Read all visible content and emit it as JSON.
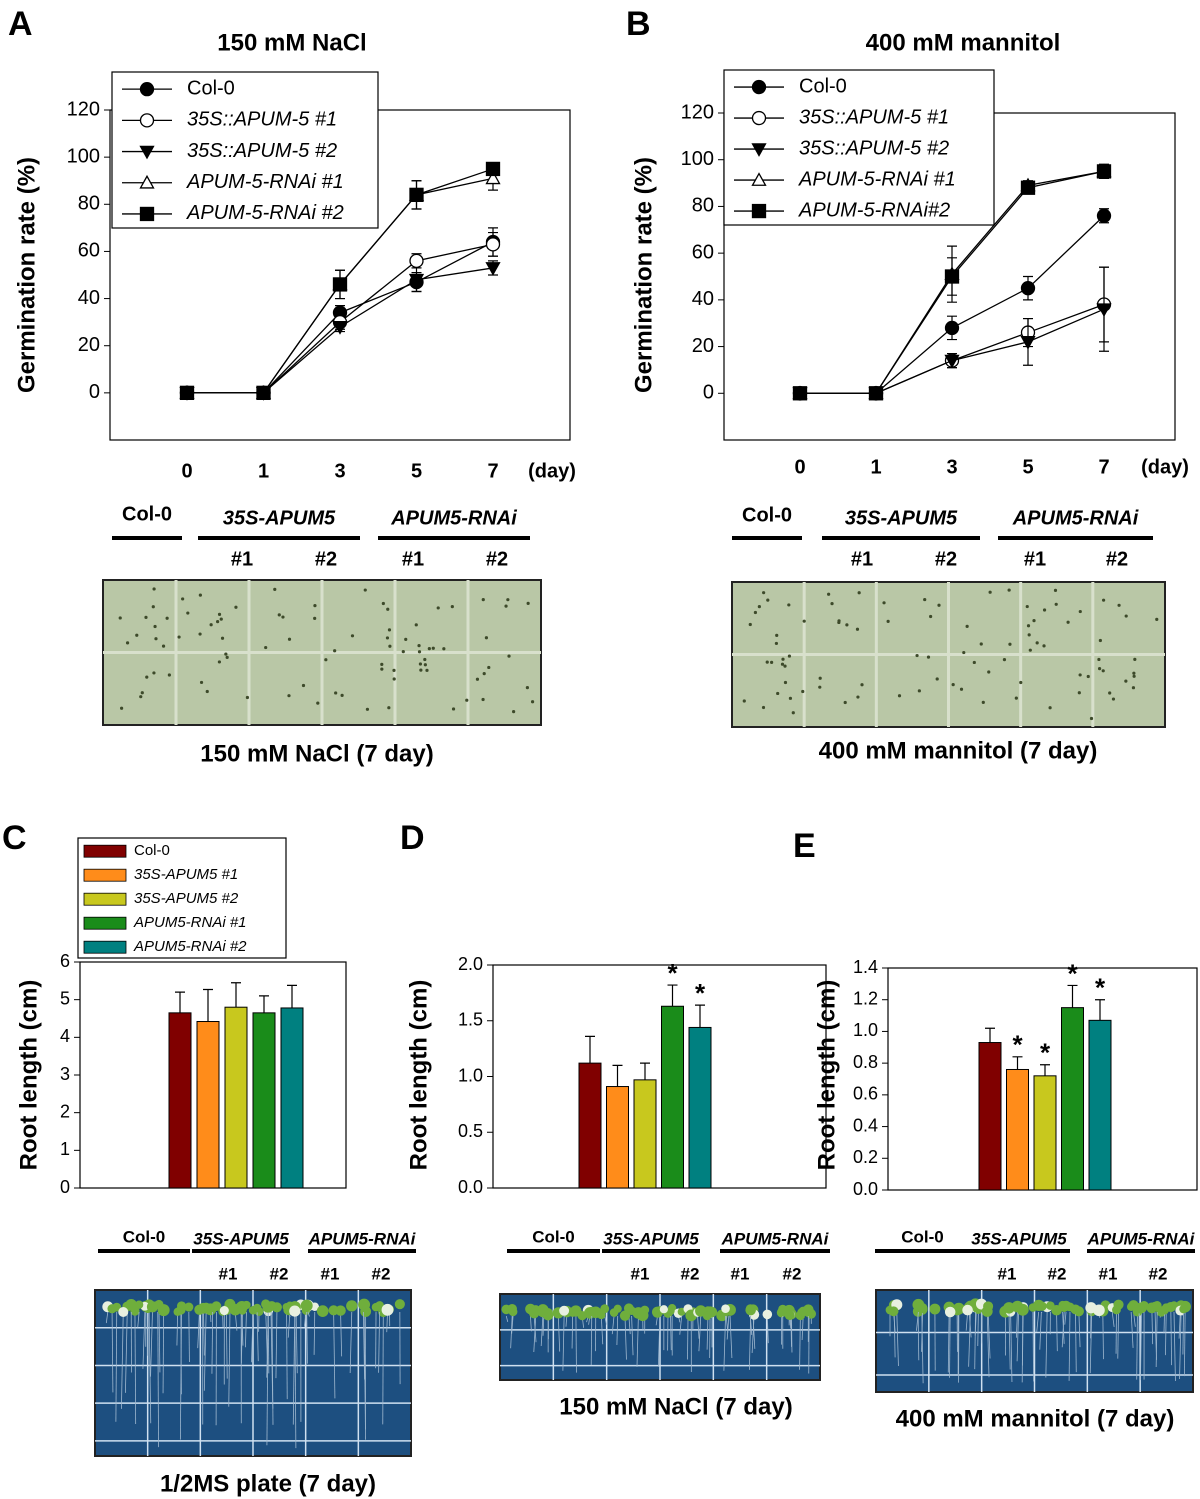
{
  "chart_data": [
    {
      "type": "line",
      "panel": "A",
      "title": "150 mM NaCl",
      "ylabel": "Germination rate (%)",
      "xlabel": "(day)",
      "categories": [
        "0",
        "1",
        "3",
        "5",
        "7"
      ],
      "ylim": [
        -20,
        120
      ],
      "yticks": [
        0,
        20,
        40,
        60,
        80,
        100,
        120
      ],
      "series": [
        {
          "name": "Col-0",
          "color": "#000000",
          "marker": "circle-filled",
          "values": [
            0,
            0,
            34,
            47,
            64
          ],
          "errors": [
            0,
            0,
            3,
            4,
            6
          ]
        },
        {
          "name": "35S::APUM-5 #1",
          "color": "#000000",
          "marker": "circle-open",
          "values": [
            0,
            0,
            30,
            56,
            63
          ],
          "errors": [
            0,
            0,
            3,
            3,
            5
          ]
        },
        {
          "name": "35S::APUM-5 #2",
          "color": "#000000",
          "marker": "triangle-down-filled",
          "values": [
            0,
            0,
            28,
            48,
            53
          ],
          "errors": [
            0,
            0,
            2,
            5,
            3
          ]
        },
        {
          "name": "APUM-5-RNAi #1",
          "color": "#000000",
          "marker": "triangle-up-open",
          "values": [
            0,
            0,
            46,
            84,
            91
          ],
          "errors": [
            0,
            0,
            6,
            6,
            5
          ]
        },
        {
          "name": "APUM-5-RNAi #2",
          "color": "#000000",
          "marker": "square-filled",
          "values": [
            0,
            0,
            46,
            84,
            95
          ],
          "errors": [
            0,
            0,
            6,
            6,
            2
          ]
        }
      ],
      "photo": {
        "groups": [
          "Col-0",
          "35S-APUM5",
          "APUM5-RNAi"
        ],
        "replicates": [
          "#1",
          "#2",
          "#1",
          "#2"
        ],
        "caption": "150 mM NaCl (7 day)"
      }
    },
    {
      "type": "line",
      "panel": "B",
      "title": "400 mM mannitol",
      "ylabel": "Germination rate (%)",
      "xlabel": "(day)",
      "categories": [
        "0",
        "1",
        "3",
        "5",
        "7"
      ],
      "ylim": [
        -20,
        120
      ],
      "yticks": [
        0,
        20,
        40,
        60,
        80,
        100,
        120
      ],
      "series": [
        {
          "name": "Col-0",
          "color": "#000000",
          "marker": "circle-filled",
          "values": [
            0,
            0,
            28,
            45,
            76
          ],
          "errors": [
            0,
            0,
            5,
            5,
            3
          ]
        },
        {
          "name": "35S::APUM-5 #1",
          "color": "#000000",
          "marker": "circle-open",
          "values": [
            0,
            0,
            14,
            26,
            38
          ],
          "errors": [
            0,
            0,
            3,
            6,
            16
          ]
        },
        {
          "name": "35S::APUM-5 #2",
          "color": "#000000",
          "marker": "triangle-down-filled",
          "values": [
            0,
            0,
            14,
            22,
            36
          ],
          "errors": [
            0,
            0,
            3,
            10,
            18
          ]
        },
        {
          "name": "APUM-5-RNAi #1",
          "color": "#000000",
          "marker": "triangle-up-open",
          "values": [
            0,
            0,
            51,
            89,
            95
          ],
          "errors": [
            0,
            0,
            12,
            2,
            3
          ]
        },
        {
          "name": "APUM-5-RNAi#2",
          "color": "#000000",
          "marker": "square-filled",
          "values": [
            0,
            0,
            50,
            88,
            95
          ],
          "errors": [
            0,
            0,
            8,
            2,
            3
          ]
        }
      ],
      "photo": {
        "groups": [
          "Col-0",
          "35S-APUM5",
          "APUM5-RNAi"
        ],
        "replicates": [
          "#1",
          "#2",
          "#1",
          "#2"
        ],
        "caption": "400 mM mannitol (7 day)"
      }
    },
    {
      "type": "bar",
      "panel": "C",
      "ylabel": "Root length (cm)",
      "ylim": [
        0,
        6
      ],
      "yticks": [
        0,
        1,
        2,
        3,
        4,
        5,
        6
      ],
      "series": [
        {
          "name": "Col-0",
          "color": "#800000",
          "values": [
            4.65
          ],
          "errors": [
            0.55
          ]
        },
        {
          "name": "35S-APUM5 #1",
          "color": "#ff8c1a",
          "values": [
            4.42
          ],
          "errors": [
            0.85
          ]
        },
        {
          "name": "35S-APUM5 #2",
          "color": "#c8c81e",
          "values": [
            4.8
          ],
          "errors": [
            0.65
          ]
        },
        {
          "name": "APUM5-RNAi #1",
          "color": "#1a8c1a",
          "values": [
            4.65
          ],
          "errors": [
            0.45
          ]
        },
        {
          "name": "APUM5-RNAi #2",
          "color": "#008080",
          "values": [
            4.78
          ],
          "errors": [
            0.6
          ]
        }
      ],
      "photo": {
        "groups": [
          "Col-0",
          "35S-APUM5",
          "APUM5-RNAi"
        ],
        "replicates": [
          "#1",
          "#2",
          "#1",
          "#2"
        ],
        "caption": "1/2MS plate (7 day)"
      }
    },
    {
      "type": "bar",
      "panel": "D",
      "ylabel": "Root length (cm)",
      "ylim": [
        0,
        2
      ],
      "yticks": [
        {
          "value": 0,
          "label": "0.0"
        },
        0.5,
        {
          "value": 1,
          "label": "1.0"
        },
        1.5,
        {
          "value": 2,
          "label": "2.0"
        }
      ],
      "series": [
        {
          "color": "#800000",
          "values": [
            1.12
          ],
          "errors": [
            0.24
          ]
        },
        {
          "color": "#ff8c1a",
          "values": [
            0.91
          ],
          "errors": [
            0.19
          ]
        },
        {
          "color": "#c8c81e",
          "values": [
            0.97
          ],
          "errors": [
            0.15
          ]
        },
        {
          "color": "#1a8c1a",
          "values": [
            1.63
          ],
          "errors": [
            0.19
          ],
          "annotation": "*"
        },
        {
          "color": "#008080",
          "values": [
            1.44
          ],
          "errors": [
            0.2
          ],
          "annotation": "*"
        }
      ],
      "photo": {
        "groups": [
          "Col-0",
          "35S-APUM5",
          "APUM5-RNAi"
        ],
        "replicates": [
          "#1",
          "#2",
          "#1",
          "#2"
        ],
        "caption": "150 mM NaCl (7 day)"
      }
    },
    {
      "type": "bar",
      "panel": "E",
      "ylabel": "Root length (cm)",
      "ylim": [
        0,
        1.4
      ],
      "yticks": [
        {
          "value": 0,
          "label": "0.0"
        },
        0.2,
        0.4,
        0.6,
        0.8,
        {
          "value": 1,
          "label": "1.0"
        },
        1.2,
        1.4
      ],
      "series": [
        {
          "color": "#800000",
          "values": [
            0.93
          ],
          "errors": [
            0.09
          ]
        },
        {
          "color": "#ff8c1a",
          "values": [
            0.76
          ],
          "errors": [
            0.08
          ],
          "annotation": "*"
        },
        {
          "color": "#c8c81e",
          "values": [
            0.72
          ],
          "errors": [
            0.07
          ],
          "annotation": "*"
        },
        {
          "color": "#1a8c1a",
          "values": [
            1.15
          ],
          "errors": [
            0.14
          ],
          "annotation": "*"
        },
        {
          "color": "#008080",
          "values": [
            1.07
          ],
          "errors": [
            0.13
          ],
          "annotation": "*"
        }
      ],
      "photo": {
        "groups": [
          "Col-0",
          "35S-APUM5",
          "APUM5-RNAi"
        ],
        "replicates": [
          "#1",
          "#2",
          "#1",
          "#2"
        ],
        "caption": "400 mM mannitol (7 day)"
      }
    }
  ]
}
